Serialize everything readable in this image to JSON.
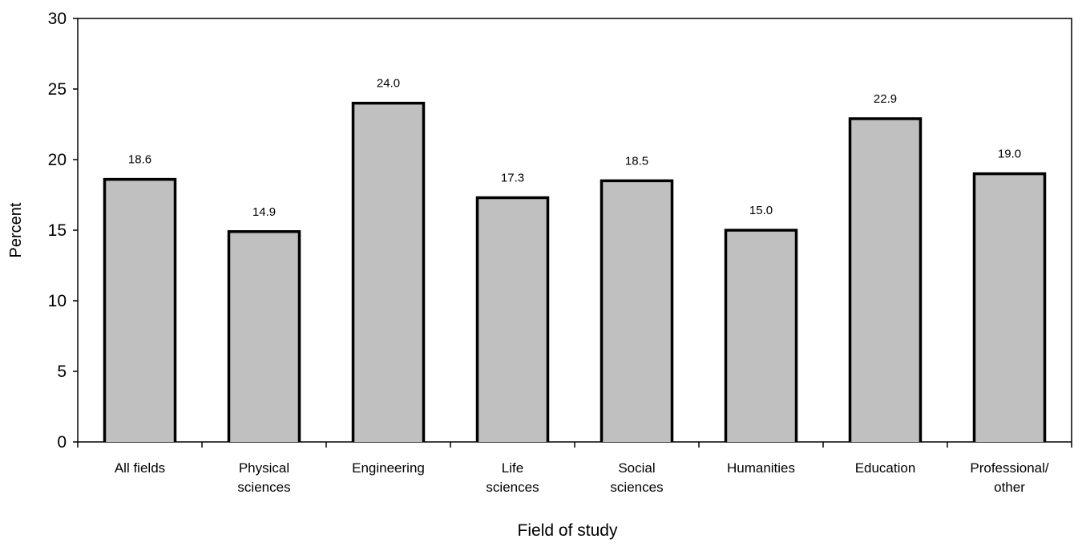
{
  "chart_data": {
    "type": "bar",
    "title": "",
    "xlabel": "Field of study",
    "ylabel": "Percent",
    "ylim": [
      0,
      30
    ],
    "yticks": [
      0,
      5,
      10,
      15,
      20,
      25,
      30
    ],
    "categories": [
      [
        "All fields"
      ],
      [
        "Physical",
        "sciences"
      ],
      [
        "Engineering"
      ],
      [
        "Life",
        "sciences"
      ],
      [
        "Social",
        "sciences"
      ],
      [
        "Humanities"
      ],
      [
        "Education"
      ],
      [
        "Professional/",
        "other"
      ]
    ],
    "values": [
      18.6,
      14.9,
      24.0,
      17.3,
      18.5,
      15.0,
      22.9,
      19.0
    ],
    "data_labels": [
      "18.6",
      "14.9",
      "24.0",
      "17.3",
      "18.5",
      "15.0",
      "22.9",
      "19.0"
    ],
    "grid": false,
    "legend": "none",
    "colors": {
      "bar_fill": "#c0c0c0",
      "bar_stroke": "#000000",
      "axis": "#000000"
    }
  }
}
